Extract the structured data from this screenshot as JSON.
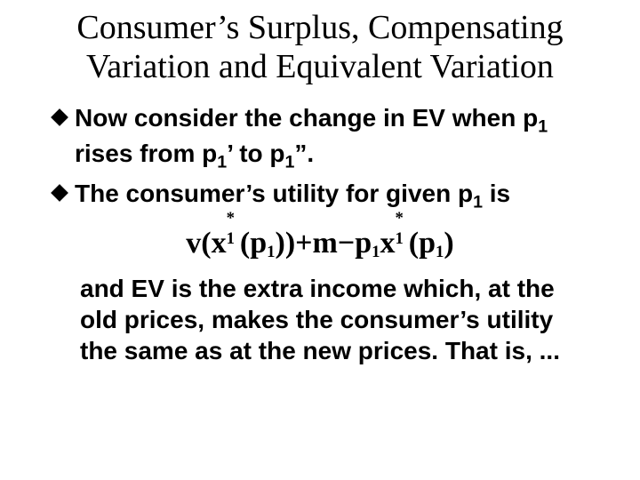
{
  "colors": {
    "background": "#ffffff",
    "text": "#000000",
    "bullet": "#000000"
  },
  "typography": {
    "title_font": "Times New Roman",
    "title_fontsize_pt": 29,
    "title_weight": 400,
    "body_font": "Arial",
    "body_fontsize_pt": 21,
    "body_weight": 700,
    "formula_font": "Times New Roman",
    "formula_fontsize_pt": 26,
    "formula_weight": 700
  },
  "title": "Consumer’s Surplus, Compensating Variation and Equivalent Variation",
  "bullets": [
    {
      "pre": "Now consider the change in EV when p",
      "sub1": "1",
      "mid1": " rises from p",
      "sub2": "1",
      "prime1": "’ to p",
      "sub3": "1",
      "end": "”."
    },
    {
      "pre": "The consumer’s utility for given p",
      "sub1": "1",
      "end": " is"
    }
  ],
  "formula": {
    "v": "v",
    "lpar": "(",
    "x": "x",
    "star": "*",
    "one": "1",
    "p": "p",
    "rpar": ")",
    "plus": " + ",
    "m": "m",
    "minus": " − "
  },
  "tail": "and EV is the extra income which, at the old prices, makes the consumer’s utility the same as at the new prices. That is, ..."
}
